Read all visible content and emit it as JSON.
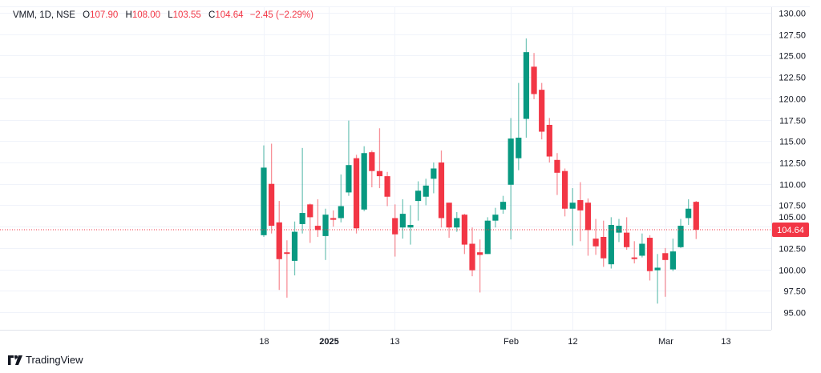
{
  "legend": {
    "symbol": "VMM, 1D, NSE",
    "o_label": "O",
    "o": "107.90",
    "h_label": "H",
    "h": "108.00",
    "l_label": "L",
    "l": "103.55",
    "c_label": "C",
    "c": "104.64",
    "change": "−2.45 (−2.29%)"
  },
  "brand": {
    "name": "TradingView"
  },
  "colors": {
    "up": "#089981",
    "down": "#f23645",
    "grid": "#f0f3fa",
    "text": "#131722"
  },
  "chart_data": {
    "type": "candlestick",
    "title": "VMM, 1D, NSE",
    "ylim": [
      93,
      130.5
    ],
    "y_ticks": [
      "95.00",
      "97.50",
      "100.00",
      "102.50",
      "105.00",
      "107.50",
      "110.00",
      "112.50",
      "115.00",
      "117.50",
      "120.00",
      "122.50",
      "125.00",
      "127.50",
      "130.00"
    ],
    "last_price": 104.64,
    "last_price_label": "104.64",
    "x_ticks": [
      {
        "label": "18",
        "index": 0,
        "bold": false
      },
      {
        "label": "2025",
        "index": 8.4,
        "bold": true
      },
      {
        "label": "13",
        "index": 16.9,
        "bold": false
      },
      {
        "label": "Feb",
        "index": 32,
        "bold": false
      },
      {
        "label": "12",
        "index": 40,
        "bold": false
      },
      {
        "label": "Mar",
        "index": 52,
        "bold": false
      },
      {
        "label": "13",
        "index": 59.8,
        "bold": false
      }
    ],
    "candles": [
      [
        104.0,
        114.5,
        103.8,
        111.9
      ],
      [
        110.0,
        114.7,
        104.2,
        105.1
      ],
      [
        105.5,
        108.0,
        97.6,
        101.2
      ],
      [
        102.0,
        103.4,
        96.7,
        101.9
      ],
      [
        101.0,
        105.6,
        99.3,
        104.4
      ],
      [
        105.3,
        114.2,
        104.2,
        106.6
      ],
      [
        107.6,
        107.7,
        103.1,
        106.1
      ],
      [
        105.1,
        108.2,
        103.8,
        104.6
      ],
      [
        103.9,
        107.1,
        101.1,
        106.4
      ],
      [
        106.0,
        106.9,
        105.0,
        105.8
      ],
      [
        106.0,
        111.1,
        105.5,
        107.4
      ],
      [
        109.0,
        117.4,
        108.6,
        112.2
      ],
      [
        113.0,
        113.4,
        104.2,
        104.8
      ],
      [
        107.0,
        114.4,
        106.8,
        113.6
      ],
      [
        113.7,
        113.9,
        109.6,
        111.5
      ],
      [
        111.5,
        116.5,
        109.5,
        110.9
      ],
      [
        110.9,
        111.4,
        107.4,
        108.5
      ],
      [
        106.0,
        107.6,
        101.5,
        104.1
      ],
      [
        104.9,
        108.2,
        103.6,
        106.5
      ],
      [
        104.9,
        107.5,
        102.9,
        105.2
      ],
      [
        108.0,
        110.3,
        105.7,
        109.2
      ],
      [
        108.5,
        110.6,
        107.5,
        109.8
      ],
      [
        110.6,
        112.5,
        108.9,
        111.8
      ],
      [
        112.5,
        113.9,
        104.9,
        106.0
      ],
      [
        107.8,
        107.8,
        103.7,
        104.9
      ],
      [
        104.9,
        106.7,
        104.4,
        106.0
      ],
      [
        106.4,
        106.5,
        101.8,
        102.9
      ],
      [
        103.0,
        104.9,
        99.2,
        99.9
      ],
      [
        102.0,
        103.5,
        97.3,
        101.7
      ],
      [
        101.8,
        106.1,
        101.8,
        105.7
      ],
      [
        105.7,
        107.2,
        104.9,
        106.4
      ],
      [
        107.0,
        108.6,
        106.5,
        107.9
      ],
      [
        109.9,
        117.7,
        103.5,
        115.3
      ],
      [
        113.0,
        121.8,
        111.6,
        115.4
      ],
      [
        117.6,
        127.0,
        115.4,
        125.4
      ],
      [
        123.7,
        125.3,
        119.9,
        120.5
      ],
      [
        121.0,
        121.8,
        115.2,
        116.1
      ],
      [
        116.9,
        117.7,
        112.5,
        113.2
      ],
      [
        112.8,
        113.6,
        108.7,
        111.3
      ],
      [
        111.5,
        111.8,
        106.2,
        107.1
      ],
      [
        107.1,
        109.5,
        102.8,
        107.8
      ],
      [
        108.1,
        110.2,
        103.3,
        106.9
      ],
      [
        107.8,
        108.3,
        101.6,
        104.6
      ],
      [
        103.6,
        105.9,
        101.7,
        102.7
      ],
      [
        103.8,
        105.7,
        100.3,
        101.3
      ],
      [
        100.6,
        106.1,
        100.1,
        105.2
      ],
      [
        104.3,
        105.9,
        103.2,
        105.1
      ],
      [
        104.3,
        106.1,
        102.3,
        102.6
      ],
      [
        101.4,
        103.3,
        100.7,
        101.3
      ],
      [
        101.6,
        104.2,
        101.4,
        103.0
      ],
      [
        103.7,
        104.0,
        98.7,
        99.8
      ],
      [
        99.9,
        101.8,
        96.0,
        100.2
      ],
      [
        101.9,
        102.5,
        96.8,
        101.1
      ],
      [
        100.0,
        103.6,
        99.8,
        102.1
      ],
      [
        102.6,
        105.9,
        102.5,
        105.1
      ],
      [
        106.0,
        108.2,
        105.2,
        107.1
      ],
      [
        107.9,
        108.0,
        103.55,
        104.64
      ]
    ]
  }
}
